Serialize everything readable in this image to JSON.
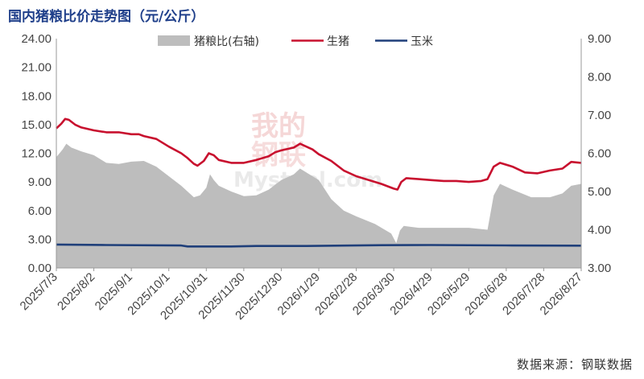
{
  "title": "国内猪粮比价走势图（元/公斤）",
  "source": "数据来源：钢联数据",
  "watermark": {
    "line1": "我的",
    "line2": "钢联",
    "line3": "Mysteel.com"
  },
  "colors": {
    "ratio": "#bdbdbd",
    "hog": "#c8102e",
    "corn": "#1f3f7a",
    "title": "#1f3f8a"
  },
  "chart_data": {
    "type": "line",
    "x_labels": [
      "2025/7/3",
      "2025/8/2",
      "2025/9/1",
      "2025/10/1",
      "2025/10/31",
      "2025/11/30",
      "2025/12/30",
      "2026/1/29",
      "2026/2/28",
      "2026/3/30",
      "2026/4/29",
      "2026/5/29",
      "2026/6/28",
      "2026/7/28",
      "2026/8/27"
    ],
    "x_range_days": [
      0,
      420
    ],
    "y_left": {
      "min": 0,
      "max": 24,
      "ticks": [
        "0.00",
        "3.00",
        "6.00",
        "9.00",
        "12.00",
        "15.00",
        "18.00",
        "21.00",
        "24.00"
      ]
    },
    "y_right": {
      "min": 3,
      "max": 9,
      "ticks": [
        "3.00",
        "4.00",
        "5.00",
        "6.00",
        "7.00",
        "8.00",
        "9.00"
      ]
    },
    "legend": [
      "猪粮比(右轴)",
      "生猪",
      "玉米"
    ],
    "series": [
      {
        "name": "猪粮比(右轴)",
        "type": "area",
        "axis": "right",
        "points": [
          [
            0,
            5.9
          ],
          [
            5,
            6.1
          ],
          [
            8,
            6.25
          ],
          [
            12,
            6.15
          ],
          [
            20,
            6.05
          ],
          [
            30,
            5.95
          ],
          [
            40,
            5.75
          ],
          [
            50,
            5.72
          ],
          [
            60,
            5.78
          ],
          [
            70,
            5.8
          ],
          [
            80,
            5.65
          ],
          [
            90,
            5.4
          ],
          [
            100,
            5.15
          ],
          [
            105,
            5.0
          ],
          [
            110,
            4.85
          ],
          [
            115,
            4.9
          ],
          [
            120,
            5.1
          ],
          [
            123,
            5.45
          ],
          [
            126,
            5.3
          ],
          [
            130,
            5.15
          ],
          [
            140,
            5.0
          ],
          [
            150,
            4.88
          ],
          [
            160,
            4.9
          ],
          [
            170,
            5.05
          ],
          [
            180,
            5.3
          ],
          [
            190,
            5.45
          ],
          [
            195,
            5.6
          ],
          [
            200,
            5.5
          ],
          [
            205,
            5.4
          ],
          [
            210,
            5.3
          ],
          [
            220,
            4.8
          ],
          [
            230,
            4.5
          ],
          [
            240,
            4.35
          ],
          [
            255,
            4.15
          ],
          [
            268,
            3.9
          ],
          [
            272,
            3.65
          ],
          [
            275,
            3.98
          ],
          [
            278,
            4.1
          ],
          [
            290,
            4.05
          ],
          [
            310,
            4.05
          ],
          [
            330,
            4.05
          ],
          [
            345,
            4.0
          ],
          [
            350,
            4.9
          ],
          [
            355,
            5.2
          ],
          [
            365,
            5.05
          ],
          [
            380,
            4.85
          ],
          [
            395,
            4.85
          ],
          [
            405,
            4.95
          ],
          [
            412,
            5.15
          ],
          [
            420,
            5.2
          ]
        ]
      },
      {
        "name": "生猪",
        "type": "line",
        "axis": "left",
        "points": [
          [
            0,
            14.6
          ],
          [
            4,
            15.1
          ],
          [
            7,
            15.6
          ],
          [
            10,
            15.5
          ],
          [
            15,
            15.0
          ],
          [
            20,
            14.7
          ],
          [
            30,
            14.4
          ],
          [
            40,
            14.2
          ],
          [
            50,
            14.2
          ],
          [
            60,
            14.0
          ],
          [
            66,
            14.0
          ],
          [
            70,
            13.8
          ],
          [
            80,
            13.5
          ],
          [
            90,
            12.7
          ],
          [
            100,
            12.0
          ],
          [
            105,
            11.5
          ],
          [
            110,
            10.9
          ],
          [
            113,
            10.7
          ],
          [
            118,
            11.2
          ],
          [
            122,
            12.0
          ],
          [
            126,
            11.8
          ],
          [
            130,
            11.3
          ],
          [
            140,
            11.0
          ],
          [
            150,
            11.0
          ],
          [
            160,
            11.3
          ],
          [
            170,
            11.7
          ],
          [
            175,
            12.1
          ],
          [
            180,
            12.3
          ],
          [
            190,
            12.6
          ],
          [
            195,
            13.0
          ],
          [
            200,
            12.7
          ],
          [
            205,
            12.4
          ],
          [
            210,
            11.9
          ],
          [
            220,
            11.2
          ],
          [
            230,
            10.2
          ],
          [
            240,
            9.6
          ],
          [
            250,
            9.2
          ],
          [
            260,
            8.8
          ],
          [
            270,
            8.3
          ],
          [
            273,
            8.2
          ],
          [
            276,
            9.0
          ],
          [
            280,
            9.4
          ],
          [
            290,
            9.3
          ],
          [
            300,
            9.2
          ],
          [
            310,
            9.1
          ],
          [
            320,
            9.1
          ],
          [
            330,
            9.0
          ],
          [
            340,
            9.1
          ],
          [
            345,
            9.3
          ],
          [
            350,
            10.6
          ],
          [
            355,
            11.0
          ],
          [
            365,
            10.6
          ],
          [
            375,
            10.0
          ],
          [
            385,
            9.9
          ],
          [
            395,
            10.2
          ],
          [
            405,
            10.4
          ],
          [
            412,
            11.1
          ],
          [
            420,
            11.0
          ]
        ]
      },
      {
        "name": "玉米",
        "type": "line",
        "axis": "left",
        "points": [
          [
            0,
            2.45
          ],
          [
            40,
            2.4
          ],
          [
            100,
            2.35
          ],
          [
            105,
            2.25
          ],
          [
            140,
            2.25
          ],
          [
            160,
            2.3
          ],
          [
            200,
            2.3
          ],
          [
            260,
            2.38
          ],
          [
            300,
            2.4
          ],
          [
            360,
            2.36
          ],
          [
            420,
            2.33
          ]
        ]
      }
    ]
  }
}
